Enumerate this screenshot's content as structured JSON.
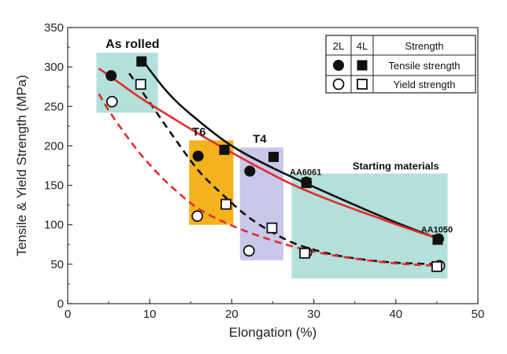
{
  "chart_data": {
    "type": "scatter",
    "xlabel": "Elongation (%)",
    "ylabel": "Tensile & Yield Strength (MPa)",
    "xlim": [
      0,
      50
    ],
    "ylim": [
      0,
      350
    ],
    "xticks": [
      0,
      10,
      20,
      30,
      40,
      50
    ],
    "yticks": [
      0,
      50,
      100,
      150,
      200,
      250,
      300,
      350
    ],
    "grid": false,
    "regions": [
      {
        "label": "As rolled",
        "color": "#b3e0da",
        "x": [
          3.5,
          11
        ],
        "y": [
          242,
          318
        ]
      },
      {
        "label": "T6",
        "color": "#f5b21f",
        "x": [
          14.8,
          20.2
        ],
        "y": [
          100,
          207
        ]
      },
      {
        "label": "T4",
        "color": "#c9c8e8",
        "x": [
          21,
          26.3
        ],
        "y": [
          55,
          198
        ]
      },
      {
        "label": "Starting materials",
        "color": "#b3e0da",
        "x": [
          27.3,
          46.3
        ],
        "y": [
          32,
          165
        ]
      }
    ],
    "annotations": [
      {
        "text": "AA6061",
        "x": 29,
        "y": 163
      },
      {
        "text": "AA1050",
        "x": 45,
        "y": 90
      }
    ],
    "series": [
      {
        "name": "2L Tensile strength",
        "marker": "filled-circle",
        "points": [
          [
            5.3,
            289
          ],
          [
            15.9,
            187
          ],
          [
            22.2,
            168
          ],
          [
            29.1,
            154
          ],
          [
            45.2,
            82
          ]
        ]
      },
      {
        "name": "4L Tensile strength",
        "marker": "filled-square",
        "points": [
          [
            9,
            307
          ],
          [
            19.1,
            195
          ],
          [
            25.1,
            186
          ],
          [
            29.1,
            153
          ],
          [
            45.1,
            81
          ]
        ]
      },
      {
        "name": "2L Yield strength",
        "marker": "open-circle",
        "points": [
          [
            5.4,
            256
          ],
          [
            15.8,
            111
          ],
          [
            22.1,
            67
          ],
          [
            29.1,
            65
          ],
          [
            45.3,
            48
          ]
        ]
      },
      {
        "name": "4L Yield strength",
        "marker": "open-square",
        "points": [
          [
            8.9,
            278
          ],
          [
            19.3,
            126
          ],
          [
            24.9,
            96
          ],
          [
            28.9,
            64
          ],
          [
            45,
            47
          ]
        ]
      }
    ],
    "fit_curves": [
      {
        "style": "solid",
        "color": "#111111",
        "points": [
          [
            9,
            310
          ],
          [
            12,
            270
          ],
          [
            15,
            240
          ],
          [
            20,
            200
          ],
          [
            25,
            172
          ],
          [
            30,
            148
          ],
          [
            35,
            125
          ],
          [
            40,
            103
          ],
          [
            45,
            83
          ]
        ]
      },
      {
        "style": "dashed",
        "color": "#111111",
        "points": [
          [
            7.5,
            292
          ],
          [
            10,
            255
          ],
          [
            13,
            210
          ],
          [
            16,
            168
          ],
          [
            19,
            137
          ],
          [
            22,
            110
          ],
          [
            25,
            90
          ],
          [
            28,
            75
          ],
          [
            32,
            63
          ],
          [
            36,
            56
          ],
          [
            40,
            52
          ],
          [
            45,
            50
          ]
        ]
      },
      {
        "style": "solid",
        "color": "#e32b2b",
        "points": [
          [
            3.8,
            298
          ],
          [
            6,
            282
          ],
          [
            9,
            260
          ],
          [
            13,
            234
          ],
          [
            17,
            209
          ],
          [
            22,
            180
          ],
          [
            27,
            153
          ],
          [
            32,
            131
          ],
          [
            37,
            112
          ],
          [
            41,
            97
          ],
          [
            45,
            83
          ]
        ]
      },
      {
        "style": "dashed",
        "color": "#e32b2b",
        "points": [
          [
            3.8,
            266
          ],
          [
            5,
            245
          ],
          [
            7,
            215
          ],
          [
            9,
            188
          ],
          [
            11,
            165
          ],
          [
            13,
            145
          ],
          [
            16,
            120
          ],
          [
            20,
            99
          ],
          [
            25,
            80
          ],
          [
            30,
            66
          ],
          [
            35,
            57
          ],
          [
            40,
            51
          ],
          [
            45,
            48
          ]
        ]
      }
    ],
    "legend": {
      "position": "top-right",
      "headers": [
        "2L",
        "4L",
        "Strength"
      ],
      "rows": [
        {
          "label": "Tensile strength",
          "marker_2l": "filled-circle",
          "marker_4l": "filled-square"
        },
        {
          "label": "Yield strength",
          "marker_2l": "open-circle",
          "marker_4l": "open-square"
        }
      ]
    }
  }
}
